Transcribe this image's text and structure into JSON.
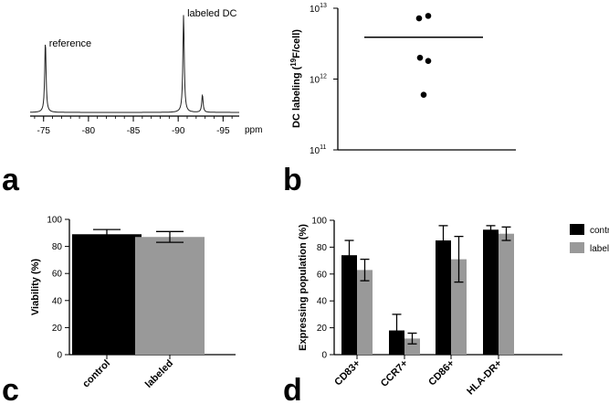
{
  "chart_data": [
    {
      "panel": "a",
      "type": "line",
      "title": "",
      "xlabel": "ppm",
      "ylabel": "",
      "xlim": [
        -73.5,
        -96.8
      ],
      "x_ticks": [
        -75,
        -80,
        -85,
        -90,
        -95
      ],
      "tick_labels": [
        "-75",
        "-80",
        "-85",
        "-90",
        "-95"
      ],
      "peaks": [
        {
          "ppm": -75.2,
          "rel_height": 0.73,
          "label": "reference"
        },
        {
          "ppm": -90.6,
          "rel_height": 1.0,
          "label": "labeled DC"
        },
        {
          "ppm": -92.7,
          "rel_height": 0.18,
          "label": ""
        }
      ]
    },
    {
      "panel": "b",
      "type": "scatter",
      "xlabel": "",
      "ylabel_pre": "DC labeling (",
      "ylabel_sup": "19",
      "ylabel_post": "F/cell)",
      "yscale": "log",
      "ylim": [
        100000000000.0,
        10000000000000.0
      ],
      "y_ticks": [
        {
          "value": 100000000000.0,
          "base": "10",
          "exp": "11"
        },
        {
          "value": 1000000000000.0,
          "base": "10",
          "exp": "12"
        },
        {
          "value": 10000000000000.0,
          "base": "10",
          "exp": "13"
        }
      ],
      "points": [
        7200000000000.0,
        7800000000000.0,
        2000000000000.0,
        1800000000000.0,
        600000000000.0
      ],
      "mean": 3900000000000.0
    },
    {
      "panel": "c",
      "type": "bar",
      "categories": [
        "control",
        "labeled"
      ],
      "values": [
        89,
        87
      ],
      "errors": [
        3.5,
        4
      ],
      "colors": [
        "#000000",
        "#999999"
      ],
      "ylabel": "Viability (%)",
      "ylim": [
        0,
        100
      ],
      "y_ticks": [
        "0",
        "20",
        "40",
        "60",
        "80",
        "100"
      ]
    },
    {
      "panel": "d",
      "type": "bar",
      "categories": [
        "CD83+",
        "CCR7+",
        "CD86+",
        "HLA-DR+"
      ],
      "series": [
        {
          "name": "control",
          "color": "#000000",
          "values": [
            74,
            18,
            85,
            93
          ],
          "errors": [
            11,
            12,
            11,
            3
          ]
        },
        {
          "name": "labeled",
          "color": "#999999",
          "values": [
            63,
            12,
            71,
            90
          ],
          "errors": [
            8,
            4,
            17,
            5
          ]
        }
      ],
      "ylabel": "Expressing population (%)",
      "ylim": [
        0,
        100
      ],
      "y_ticks": [
        "0",
        "20",
        "40",
        "60",
        "80",
        "100"
      ],
      "legend": "top-right"
    }
  ],
  "panel_labels": {
    "a": "a",
    "b": "b",
    "c": "c",
    "d": "d"
  }
}
